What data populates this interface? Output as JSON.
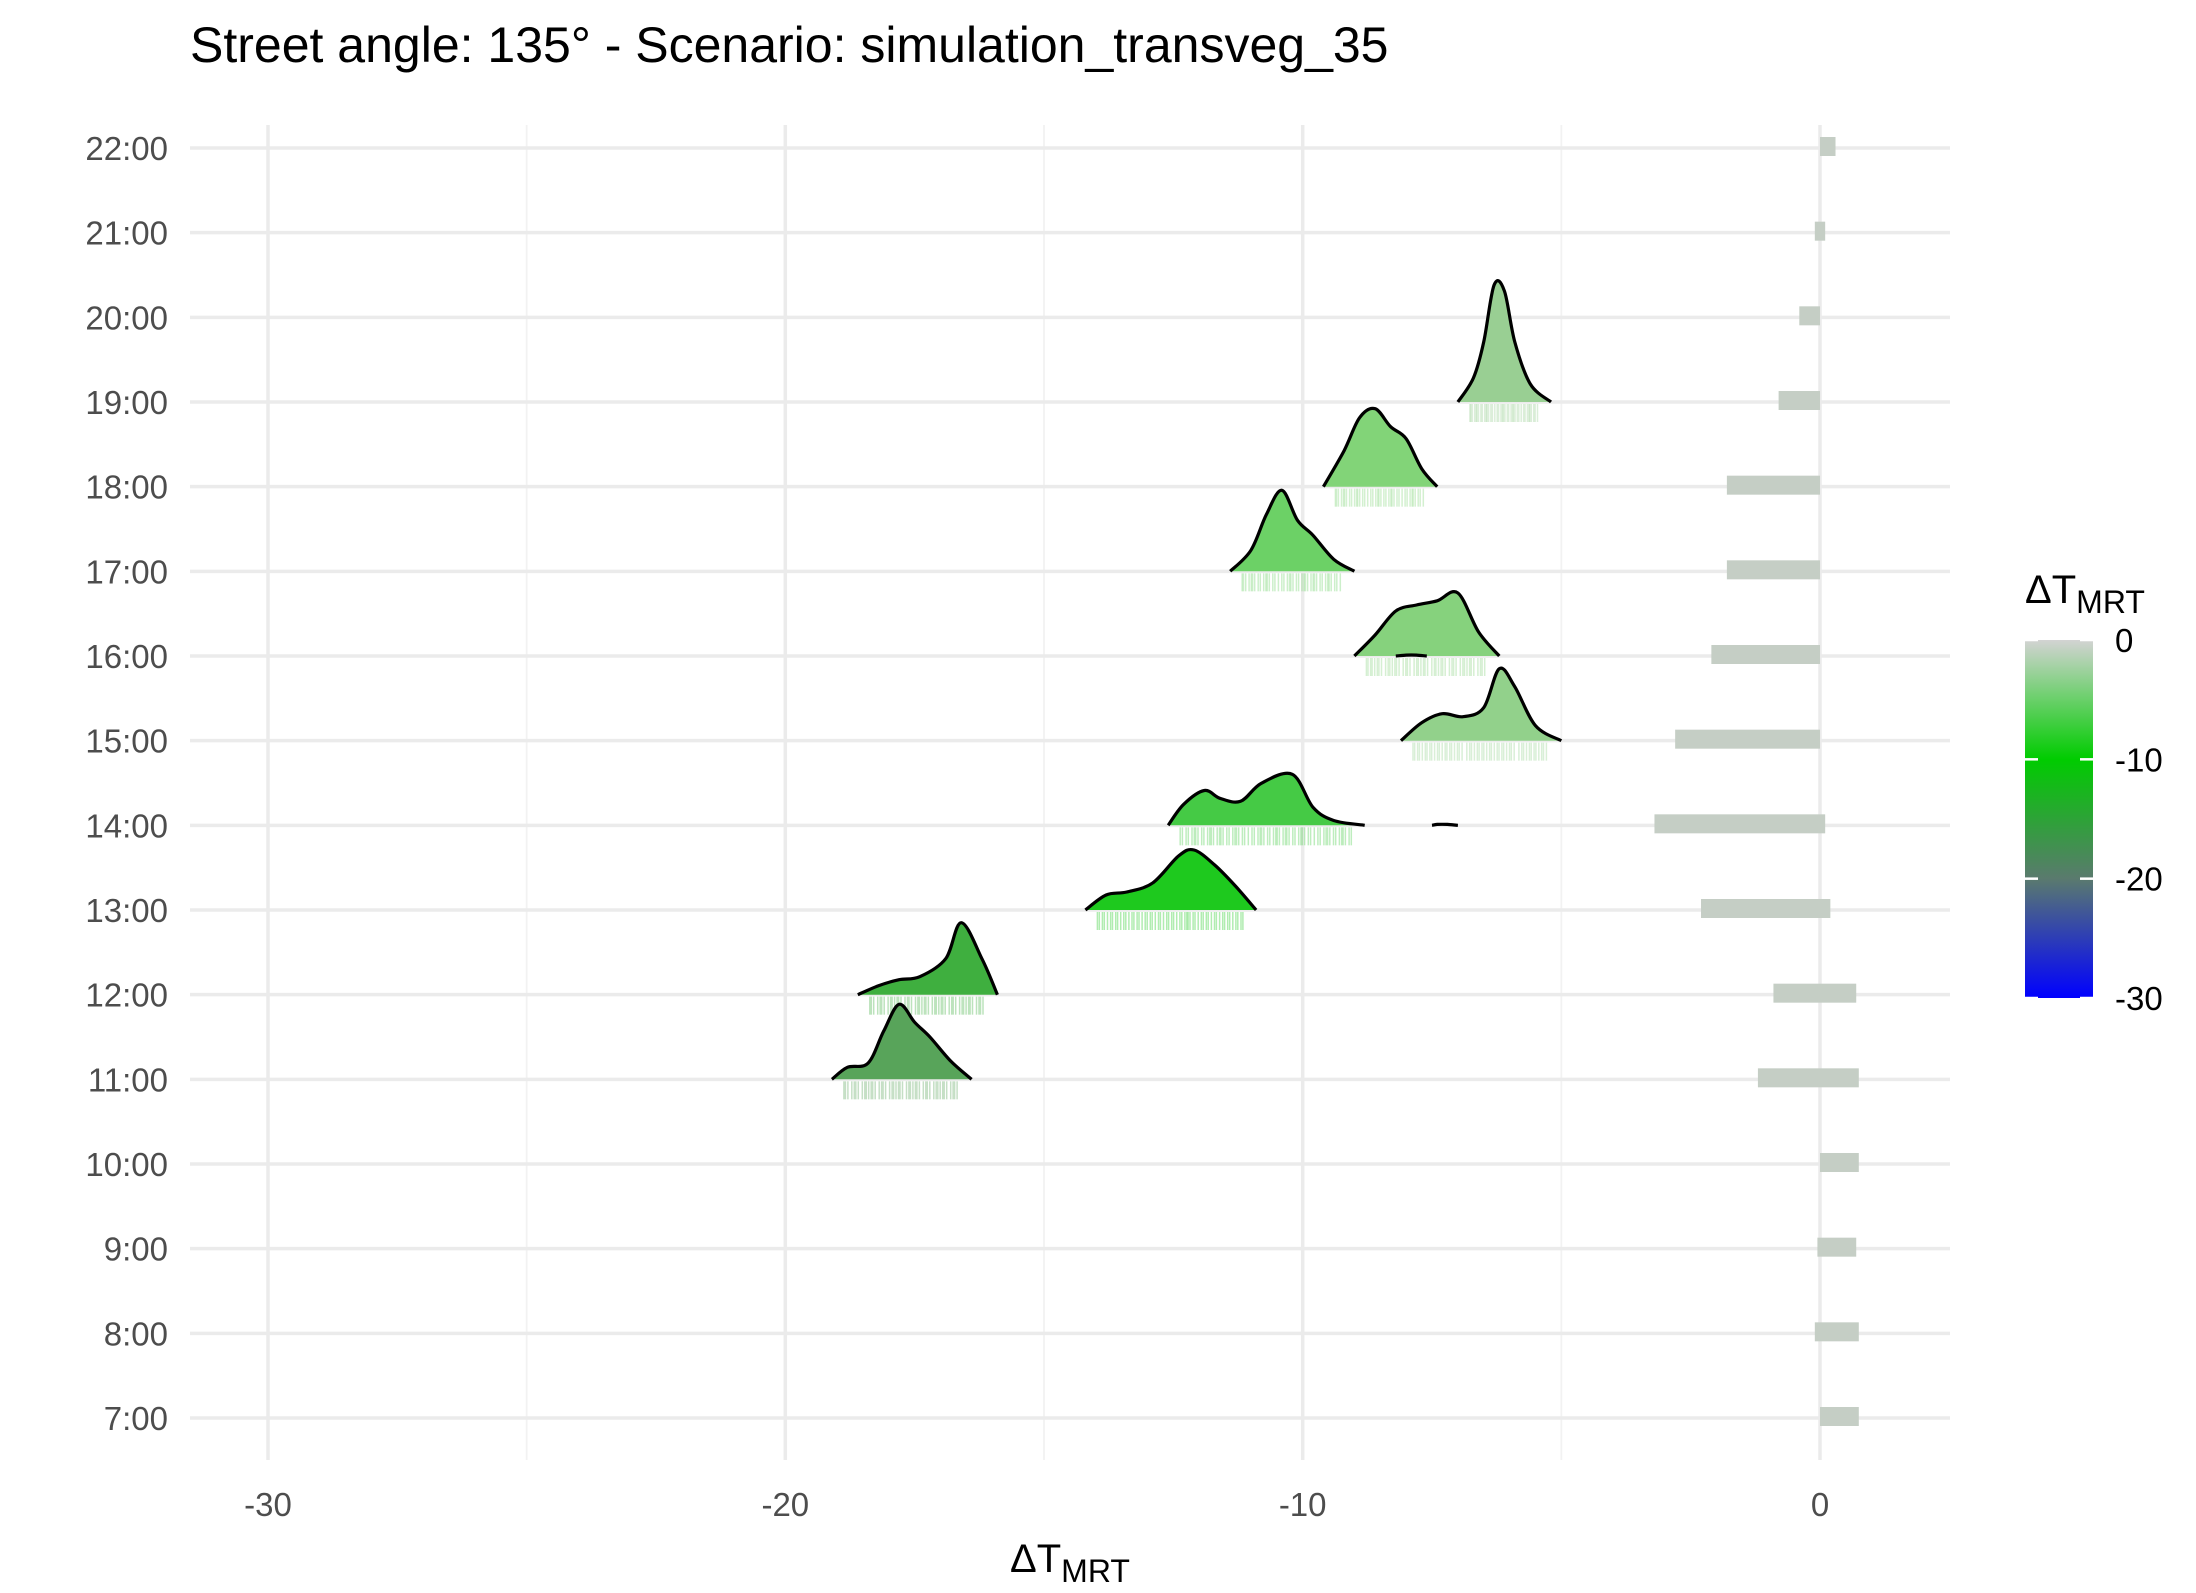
{
  "chart_data": {
    "type": "ridgeline",
    "title": "Street angle: 135° - Scenario: simulation_transveg_35",
    "xlabel": {
      "main": "ΔT",
      "sub": "MRT"
    },
    "ylabel": "",
    "xlim": [
      -31.5,
      2.6
    ],
    "x_ticks": [
      -30,
      -20,
      -10,
      0
    ],
    "x_tick_labels": [
      "-30",
      "-20",
      "-10",
      "0"
    ],
    "y_categories": [
      "7:00",
      "8:00",
      "9:00",
      "10:00",
      "11:00",
      "12:00",
      "13:00",
      "14:00",
      "15:00",
      "16:00",
      "17:00",
      "18:00",
      "19:00",
      "20:00",
      "21:00",
      "22:00"
    ],
    "grid": true,
    "legend": {
      "title": {
        "main": "ΔT",
        "sub": "MRT"
      },
      "placement": "right",
      "range": [
        -30,
        0
      ],
      "ticks": [
        0,
        -10,
        -20,
        -30
      ],
      "tick_labels": [
        "0",
        "-10",
        "-20",
        "-30"
      ],
      "gradient": [
        {
          "value": 0,
          "color": "#d3d3d3"
        },
        {
          "value": -10,
          "color": "#00cc00"
        },
        {
          "value": -20,
          "color": "#5a7a6e"
        },
        {
          "value": -30,
          "color": "#0000ff"
        }
      ]
    },
    "series": [
      {
        "name": "main",
        "densities": [
          {
            "hour": "11:00",
            "fill": "#58a45a",
            "x": [
              -19.1,
              -18.8,
              -18.4,
              -18.1,
              -17.8,
              -17.5,
              -17.2,
              -16.8,
              -16.4
            ],
            "y": [
              0.0,
              0.2,
              0.27,
              0.8,
              1.25,
              0.95,
              0.7,
              0.3,
              0.0
            ]
          },
          {
            "hour": "12:00",
            "fill": "#3faf3f",
            "x": [
              -18.6,
              -18.2,
              -17.8,
              -17.4,
              -16.9,
              -16.6,
              -16.2,
              -15.9
            ],
            "y": [
              0.0,
              0.15,
              0.25,
              0.3,
              0.6,
              1.2,
              0.6,
              0.0
            ]
          },
          {
            "hour": "13:00",
            "fill": "#1ec91e",
            "x": [
              -14.2,
              -13.8,
              -13.4,
              -12.9,
              -12.4,
              -12.1,
              -11.7,
              -11.3,
              -10.9
            ],
            "y": [
              0.0,
              0.25,
              0.3,
              0.45,
              0.9,
              1.0,
              0.75,
              0.4,
              0.0
            ]
          },
          {
            "hour": "14:00",
            "fill": "#45ca45",
            "x": [
              -12.6,
              -12.3,
              -11.9,
              -11.6,
              -11.2,
              -10.8,
              -10.2,
              -9.8,
              -9.4,
              -8.8
            ],
            "y": [
              0.0,
              0.35,
              0.58,
              0.45,
              0.4,
              0.7,
              0.85,
              0.3,
              0.08,
              0.0
            ]
          },
          {
            "hour": "15:00",
            "fill": "#92d18b",
            "x": [
              -8.1,
              -7.7,
              -7.3,
              -6.9,
              -6.5,
              -6.2,
              -5.9,
              -5.5,
              -5.0
            ],
            "y": [
              0.0,
              0.3,
              0.45,
              0.4,
              0.55,
              1.2,
              0.9,
              0.25,
              0.0
            ]
          },
          {
            "hour": "16:00",
            "fill": "#86d27d",
            "x": [
              -9.0,
              -8.6,
              -8.2,
              -7.8,
              -7.4,
              -7.0,
              -6.6,
              -6.2
            ],
            "y": [
              0.0,
              0.35,
              0.75,
              0.85,
              0.92,
              1.05,
              0.4,
              0.0
            ]
          },
          {
            "hour": "17:00",
            "fill": "#6cd166",
            "x": [
              -11.4,
              -11.0,
              -10.7,
              -10.4,
              -10.1,
              -9.8,
              -9.4,
              -9.0
            ],
            "y": [
              0.0,
              0.35,
              0.95,
              1.35,
              0.85,
              0.6,
              0.2,
              0.0
            ]
          },
          {
            "hour": "18:00",
            "fill": "#82d478",
            "x": [
              -9.6,
              -9.2,
              -8.9,
              -8.6,
              -8.3,
              -8.0,
              -7.7,
              -7.4
            ],
            "y": [
              0.0,
              0.6,
              1.15,
              1.3,
              1.0,
              0.8,
              0.3,
              0.0
            ]
          },
          {
            "hour": "19:00",
            "fill": "#99cf93",
            "x": [
              -7.0,
              -6.7,
              -6.5,
              -6.3,
              -6.1,
              -5.9,
              -5.6,
              -5.2
            ],
            "y": [
              0.0,
              0.4,
              1.0,
              1.95,
              1.85,
              1.0,
              0.3,
              0.0
            ]
          }
        ]
      },
      {
        "name": "stray",
        "densities": [
          {
            "hour": "14:00",
            "fill": "none",
            "x": [
              -7.5,
              -7.4,
              -7.2,
              -7.0
            ],
            "y": [
              0.0,
              0.015,
              0.015,
              0.0
            ]
          },
          {
            "hour": "16:00",
            "fill": "none",
            "x": [
              -8.2,
              -8.0,
              -7.8,
              -7.6
            ],
            "y": [
              0.0,
              0.015,
              0.015,
              0.0
            ]
          }
        ]
      },
      {
        "name": "rug",
        "rugs": [
          {
            "hour": "7:00",
            "x": [
              0.0,
              0.75
            ],
            "color": "#c5cec5"
          },
          {
            "hour": "8:00",
            "x": [
              -0.1,
              0.75
            ],
            "color": "#c5cec5"
          },
          {
            "hour": "9:00",
            "x": [
              -0.05,
              0.7
            ],
            "color": "#c5cec5"
          },
          {
            "hour": "10:00",
            "x": [
              0.0,
              0.75
            ],
            "color": "#c5cec5"
          },
          {
            "hour": "11:00",
            "x": [
              -1.2,
              0.75
            ],
            "color": "#c5cec5"
          },
          {
            "hour": "12:00",
            "x": [
              -0.9,
              0.7
            ],
            "color": "#c5cec5"
          },
          {
            "hour": "13:00",
            "x": [
              -2.3,
              0.2
            ],
            "color": "#c5cec5"
          },
          {
            "hour": "14:00",
            "x": [
              -3.2,
              0.1
            ],
            "color": "#c5cec5"
          },
          {
            "hour": "15:00",
            "x": [
              -2.8,
              0.0
            ],
            "color": "#c5cec5"
          },
          {
            "hour": "16:00",
            "x": [
              -2.1,
              0.0
            ],
            "color": "#c5cec5"
          },
          {
            "hour": "17:00",
            "x": [
              -1.8,
              0.0
            ],
            "color": "#c5cec5"
          },
          {
            "hour": "18:00",
            "x": [
              -1.8,
              0.0
            ],
            "color": "#c5cec5"
          },
          {
            "hour": "19:00",
            "x": [
              -0.8,
              0.0
            ],
            "color": "#c5cec5"
          },
          {
            "hour": "20:00",
            "x": [
              -0.4,
              0.0
            ],
            "color": "#c5cec5"
          },
          {
            "hour": "21:00",
            "x": [
              -0.1,
              0.1
            ],
            "color": "#c5cec5"
          },
          {
            "hour": "22:00",
            "x": [
              0.0,
              0.3
            ],
            "color": "#c5cec5"
          }
        ]
      }
    ]
  }
}
